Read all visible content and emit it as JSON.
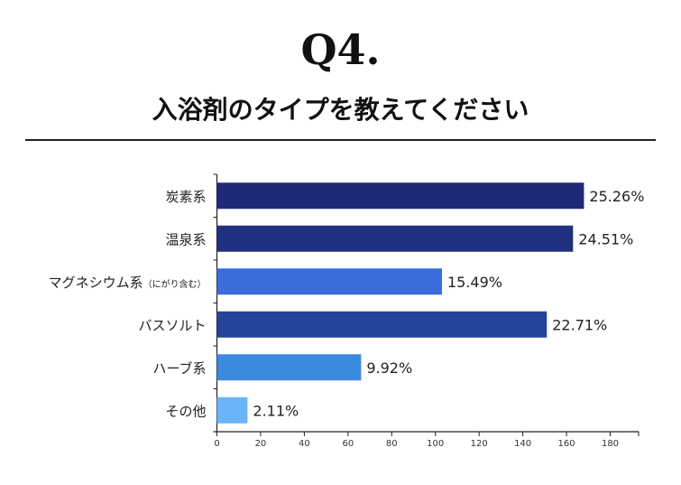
{
  "chart_data": {
    "type": "bar",
    "orientation": "horizontal",
    "title": "Q4.",
    "subtitle": "入浴剤のタイプを教えてください",
    "categories": [
      "炭素系",
      "温泉系",
      "マグネシウム系",
      "バスソルト",
      "ハーブ系",
      "その他"
    ],
    "category_notes": [
      "",
      "",
      "（にがり含む）",
      "",
      "",
      ""
    ],
    "values": [
      168,
      163,
      103,
      151,
      66,
      14
    ],
    "data_labels": [
      "25.26%",
      "24.51%",
      "15.49%",
      "22.71%",
      "9.92%",
      "2.11%"
    ],
    "colors": [
      "#1e2a78",
      "#1f3080",
      "#3a6cdc",
      "#24439a",
      "#3b8ade",
      "#6ab4f8"
    ],
    "xlim": [
      0,
      193
    ],
    "xticks": [
      0,
      20,
      40,
      60,
      80,
      100,
      120,
      140,
      160,
      180
    ],
    "xlabel": "",
    "ylabel": "",
    "grid": false,
    "legend": "none"
  }
}
